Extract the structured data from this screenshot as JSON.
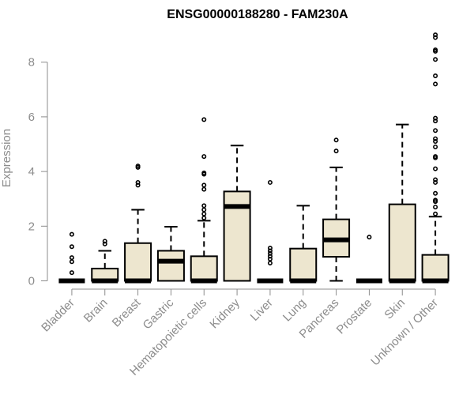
{
  "chart_data": {
    "type": "boxplot",
    "title": "ENSG00000188280 - FAM230A",
    "xlabel": "",
    "ylabel": "Expression",
    "ylim": [
      0,
      9
    ],
    "yticks": [
      0,
      2,
      4,
      6,
      8
    ],
    "colors": {
      "box_fill": "#ede6cf",
      "box_stroke": "#000000",
      "axis": "#8c8c8c"
    },
    "categories": [
      "Bladder",
      "Brain",
      "Breast",
      "Gastric",
      "Hematopoietic cells",
      "Kidney",
      "Liver",
      "Lung",
      "Pancreas",
      "Prostate",
      "Skin",
      "Unknown / Other"
    ],
    "boxes": [
      {
        "name": "Bladder",
        "min": 0,
        "q1": 0,
        "median": 0,
        "q3": 0,
        "max": 0,
        "outliers": [
          0.3,
          0.7,
          0.85,
          1.25,
          1.7
        ]
      },
      {
        "name": "Brain",
        "min": 0,
        "q1": 0,
        "median": 0,
        "q3": 0.45,
        "max": 1.1,
        "outliers": [
          1.35,
          1.45
        ]
      },
      {
        "name": "Breast",
        "min": 0,
        "q1": 0,
        "median": 0,
        "q3": 1.38,
        "max": 2.6,
        "outliers": [
          3.5,
          3.6,
          4.15,
          4.2
        ]
      },
      {
        "name": "Gastric",
        "min": 0,
        "q1": 0,
        "median": 0.72,
        "q3": 1.1,
        "max": 1.98,
        "outliers": []
      },
      {
        "name": "Hematopoietic cells",
        "min": 0,
        "q1": 0,
        "median": 0,
        "q3": 0.9,
        "max": 2.2,
        "outliers": [
          2.3,
          2.45,
          2.6,
          2.75,
          3.35,
          3.5,
          3.9,
          3.95,
          4.55,
          5.9
        ]
      },
      {
        "name": "Kidney",
        "min": 0,
        "q1": 0,
        "median": 2.72,
        "q3": 3.27,
        "max": 4.95,
        "outliers": []
      },
      {
        "name": "Liver",
        "min": 0,
        "q1": 0,
        "median": 0,
        "q3": 0,
        "max": 0,
        "outliers": [
          0.65,
          0.8,
          0.9,
          1.0,
          1.1,
          1.2,
          3.6
        ]
      },
      {
        "name": "Lung",
        "min": 0,
        "q1": 0,
        "median": 0,
        "q3": 1.18,
        "max": 2.75,
        "outliers": []
      },
      {
        "name": "Pancreas",
        "min": 0,
        "q1": 0.88,
        "median": 1.5,
        "q3": 2.25,
        "max": 4.15,
        "outliers": [
          4.75,
          5.15
        ]
      },
      {
        "name": "Prostate",
        "min": 0,
        "q1": 0,
        "median": 0,
        "q3": 0,
        "max": 0,
        "outliers": [
          1.6
        ]
      },
      {
        "name": "Skin",
        "min": 0,
        "q1": 0,
        "median": 0,
        "q3": 2.8,
        "max": 5.72,
        "outliers": []
      },
      {
        "name": "Unknown / Other",
        "min": 0,
        "q1": 0,
        "median": 0,
        "q3": 0.95,
        "max": 2.35,
        "outliers": [
          2.45,
          2.7,
          2.9,
          2.95,
          3.2,
          3.6,
          3.7,
          4.1,
          4.5,
          4.55,
          4.9,
          5.1,
          5.2,
          5.5,
          5.85,
          5.95,
          7.2,
          7.5,
          8.1,
          8.4,
          8.45,
          8.9,
          9.0
        ]
      }
    ]
  }
}
